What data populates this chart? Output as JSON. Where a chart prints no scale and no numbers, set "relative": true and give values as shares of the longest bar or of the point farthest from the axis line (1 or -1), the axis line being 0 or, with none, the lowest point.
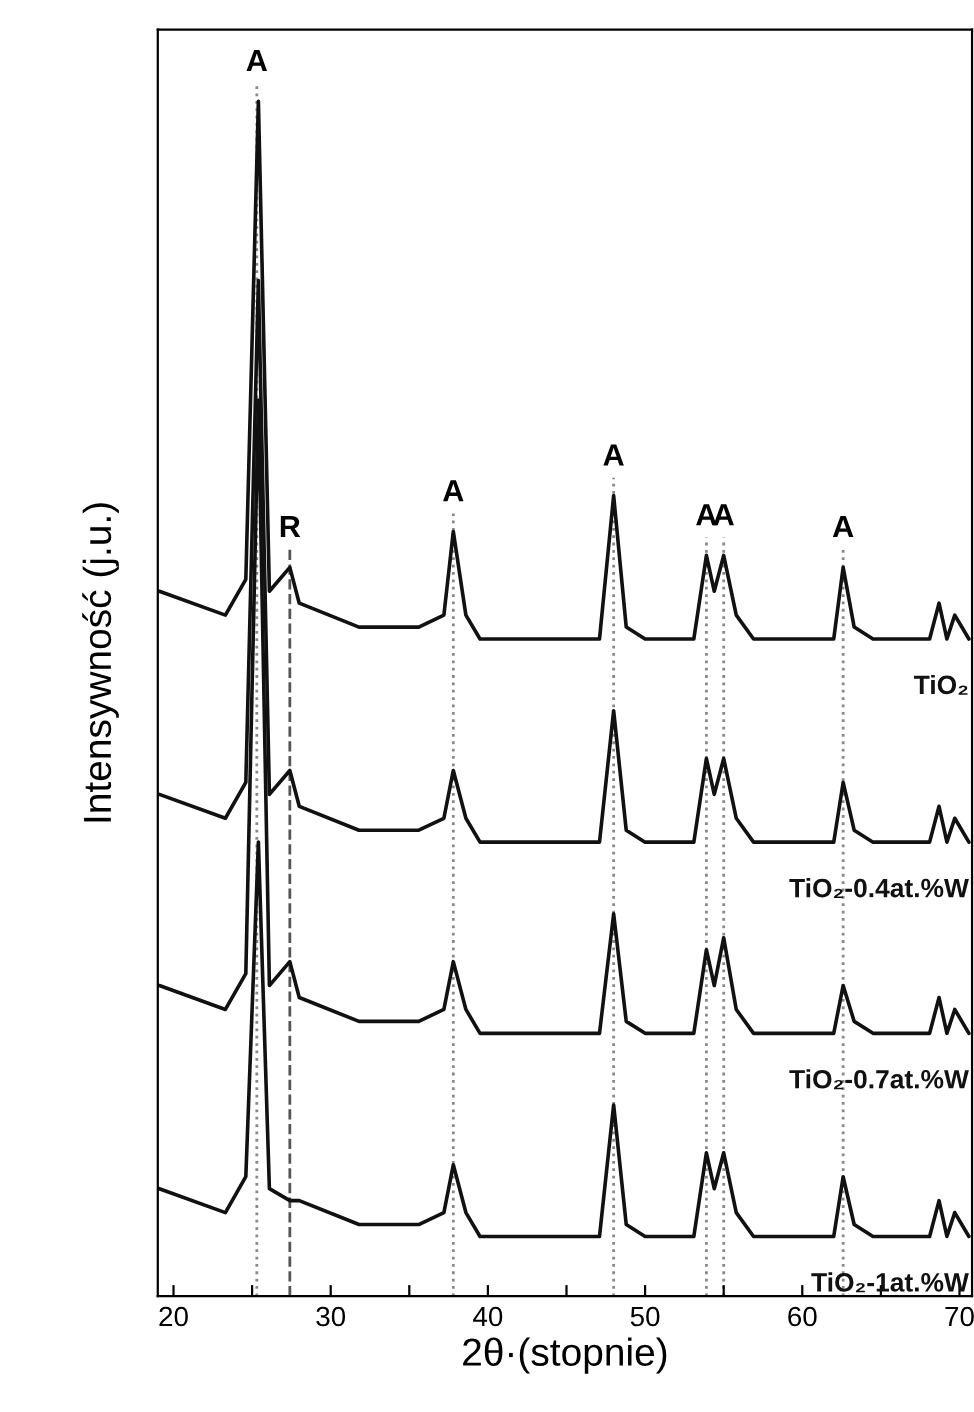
{
  "chart_data": {
    "type": "line",
    "relative": true,
    "xlabel": "2θ·(stopnie)",
    "ylabel": "Intensywność (j.u.)",
    "xlim": [
      19,
      70.8
    ],
    "xticks": [
      20,
      {
        "value": 25,
        "label": null
      },
      30,
      {
        "value": 35,
        "label": null
      },
      40,
      {
        "value": 45,
        "label": null
      },
      50,
      {
        "value": 55,
        "label": null
      },
      60,
      {
        "value": 65,
        "label": null
      },
      70
    ],
    "tick_labels": "x",
    "grid": false,
    "legend": false,
    "marker": "none",
    "line_style": "solid",
    "x": [
      19.1,
      23.3,
      24.6,
      25.4,
      26.1,
      27.4,
      28.0,
      31.8,
      35.6,
      37.2,
      37.8,
      38.6,
      39.5,
      47.1,
      48.0,
      48.8,
      50.0,
      53.1,
      53.9,
      54.4,
      55.0,
      55.8,
      56.9,
      62.0,
      62.6,
      63.3,
      64.5,
      68.1,
      68.7,
      69.2,
      69.7,
      70.6
    ],
    "series": [
      {
        "name": "TiO₂",
        "color": "#111111",
        "values": [
          0.59,
          0.57,
          0.6,
          1.0,
          0.59,
          0.61,
          0.58,
          0.56,
          0.56,
          0.57,
          0.64,
          0.57,
          0.55,
          0.55,
          0.67,
          0.56,
          0.55,
          0.55,
          0.62,
          0.59,
          0.62,
          0.57,
          0.55,
          0.55,
          0.61,
          0.56,
          0.55,
          0.55,
          0.58,
          0.55,
          0.57,
          0.55
        ]
      },
      {
        "name": "TiO₂-0.4at.%W",
        "color": "#111111",
        "values": [
          0.42,
          0.4,
          0.43,
          0.85,
          0.42,
          0.44,
          0.41,
          0.39,
          0.39,
          0.4,
          0.44,
          0.4,
          0.38,
          0.38,
          0.49,
          0.39,
          0.38,
          0.38,
          0.45,
          0.42,
          0.45,
          0.4,
          0.38,
          0.38,
          0.43,
          0.39,
          0.38,
          0.38,
          0.41,
          0.38,
          0.4,
          0.38
        ]
      },
      {
        "name": "TiO₂-0.7at.%W",
        "color": "#111111",
        "values": [
          0.26,
          0.24,
          0.27,
          0.75,
          0.26,
          0.28,
          0.25,
          0.23,
          0.23,
          0.24,
          0.28,
          0.24,
          0.22,
          0.22,
          0.32,
          0.23,
          0.22,
          0.22,
          0.29,
          0.26,
          0.3,
          0.24,
          0.22,
          0.22,
          0.26,
          0.23,
          0.22,
          0.22,
          0.25,
          0.22,
          0.24,
          0.22
        ]
      },
      {
        "name": "TiO₂-1at.%W",
        "color": "#111111",
        "values": [
          0.09,
          0.07,
          0.1,
          0.38,
          0.09,
          0.08,
          0.08,
          0.06,
          0.06,
          0.07,
          0.11,
          0.07,
          0.05,
          0.05,
          0.16,
          0.06,
          0.05,
          0.05,
          0.12,
          0.09,
          0.12,
          0.07,
          0.05,
          0.05,
          0.1,
          0.06,
          0.05,
          0.05,
          0.08,
          0.05,
          0.07,
          0.05
        ]
      }
    ],
    "ref_lines": [
      {
        "axis": "x",
        "value": 25.3,
        "label": "A",
        "color": "#888888",
        "line_style": "dotted"
      },
      {
        "axis": "x",
        "value": 27.4,
        "label": "R",
        "color": "#555555",
        "line_style": "dashed"
      },
      {
        "axis": "x",
        "value": 37.8,
        "label": "A",
        "color": "#888888",
        "line_style": "dotted"
      },
      {
        "axis": "x",
        "value": 48.0,
        "label": "A",
        "color": "#888888",
        "line_style": "dotted"
      },
      {
        "axis": "x",
        "value": 53.9,
        "label": "A",
        "color": "#888888",
        "line_style": "dotted"
      },
      {
        "axis": "x",
        "value": 55.0,
        "label": "A",
        "color": "#888888",
        "line_style": "dotted"
      },
      {
        "axis": "x",
        "value": 62.6,
        "label": "A",
        "color": "#888888",
        "line_style": "dotted"
      }
    ]
  }
}
